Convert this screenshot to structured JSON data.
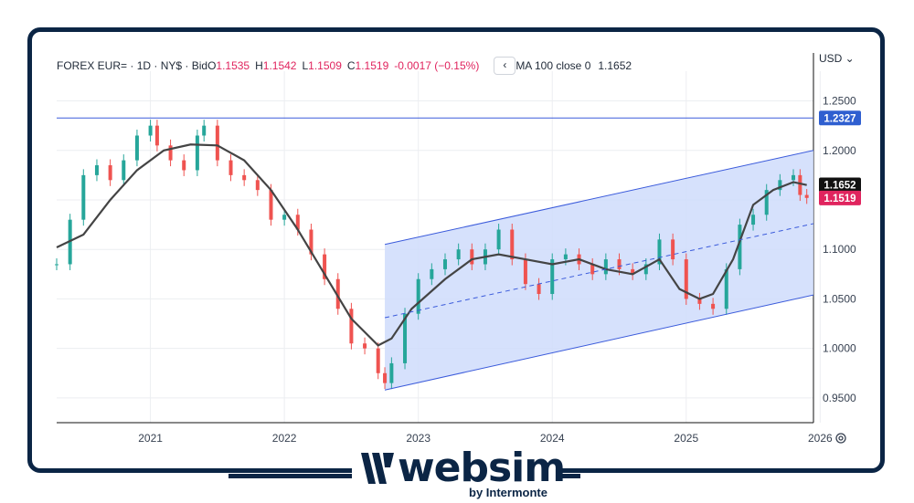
{
  "header": {
    "symbol": "FOREX EUR=",
    "interval": "1D",
    "exchange": "NY$",
    "price_type": "Bid",
    "open_label": "O",
    "open": "1.1535",
    "high_label": "H",
    "high": "1.1542",
    "low_label": "L",
    "low": "1.1509",
    "close_label": "C",
    "close": "1.1519",
    "change": "-0.0017 (−0.15%)",
    "collapse_glyph": "‹",
    "ma_label": "MA 100 close 0",
    "ma_value": "1.1652"
  },
  "currency_selector": "USD ⌄",
  "logo": {
    "name": "websim",
    "tagline": "by Intermonte"
  },
  "chart_data": {
    "type": "line",
    "title": "",
    "xlabel": "",
    "ylabel": "",
    "x_ticks": [
      "2021",
      "2022",
      "2023",
      "2024",
      "2025",
      "2026"
    ],
    "y_ticks": [
      "1.2500",
      "1.2000",
      "1.1500",
      "1.1000",
      "1.0500",
      "1.0000",
      "0.9500"
    ],
    "ylim": [
      0.925,
      1.28
    ],
    "xlim": [
      2020.3,
      2025.95
    ],
    "series": [
      {
        "type": "candlestick",
        "color_up": "#26a69a",
        "color_down": "#ef5350",
        "x": [
          2020.3,
          2020.4,
          2020.5,
          2020.6,
          2020.7,
          2020.8,
          2020.9,
          2021.0,
          2021.05,
          2021.15,
          2021.25,
          2021.35,
          2021.4,
          2021.5,
          2021.6,
          2021.7,
          2021.8,
          2021.9,
          2022.0,
          2022.1,
          2022.2,
          2022.3,
          2022.4,
          2022.5,
          2022.6,
          2022.7,
          2022.75,
          2022.8,
          2022.9,
          2023.0,
          2023.1,
          2023.2,
          2023.3,
          2023.4,
          2023.5,
          2023.6,
          2023.7,
          2023.8,
          2023.9,
          2024.0,
          2024.1,
          2024.2,
          2024.3,
          2024.4,
          2024.5,
          2024.6,
          2024.7,
          2024.8,
          2024.9,
          2025.0,
          2025.1,
          2025.2,
          2025.3,
          2025.4,
          2025.5,
          2025.6,
          2025.7,
          2025.8,
          2025.85,
          2025.9
        ],
        "close": [
          1.085,
          1.13,
          1.175,
          1.185,
          1.17,
          1.19,
          1.215,
          1.225,
          1.205,
          1.19,
          1.18,
          1.215,
          1.225,
          1.19,
          1.175,
          1.17,
          1.16,
          1.13,
          1.135,
          1.12,
          1.095,
          1.07,
          1.04,
          1.005,
          1.0,
          0.975,
          0.965,
          0.985,
          1.035,
          1.07,
          1.08,
          1.09,
          1.1,
          1.085,
          1.1,
          1.12,
          1.09,
          1.065,
          1.055,
          1.09,
          1.095,
          1.085,
          1.075,
          1.09,
          1.08,
          1.075,
          1.085,
          1.11,
          1.09,
          1.05,
          1.045,
          1.04,
          1.08,
          1.125,
          1.135,
          1.16,
          1.17,
          1.175,
          1.155,
          1.152
        ]
      },
      {
        "name": "MA 100 close 0",
        "color": "#444444",
        "x": [
          2020.3,
          2020.5,
          2020.7,
          2020.9,
          2021.1,
          2021.3,
          2021.5,
          2021.7,
          2021.9,
          2022.1,
          2022.3,
          2022.5,
          2022.7,
          2022.8,
          2022.95,
          2023.2,
          2023.4,
          2023.6,
          2023.8,
          2024.0,
          2024.2,
          2024.4,
          2024.6,
          2024.8,
          2024.95,
          2025.1,
          2025.2,
          2025.35,
          2025.5,
          2025.65,
          2025.8,
          2025.9
        ],
        "y": [
          1.102,
          1.115,
          1.15,
          1.18,
          1.2,
          1.206,
          1.205,
          1.19,
          1.16,
          1.12,
          1.075,
          1.03,
          1.003,
          1.01,
          1.04,
          1.07,
          1.09,
          1.095,
          1.09,
          1.085,
          1.09,
          1.08,
          1.075,
          1.09,
          1.06,
          1.05,
          1.055,
          1.09,
          1.145,
          1.16,
          1.168,
          1.165
        ]
      },
      {
        "name": "horizontal",
        "color": "#3b5bdb",
        "x": [
          2020.3,
          2025.95
        ],
        "y": [
          1.2327,
          1.2327
        ]
      },
      {
        "name": "channel-upper",
        "color": "#3b5bdb",
        "x": [
          2022.75,
          2025.95
        ],
        "y": [
          1.105,
          1.2
        ]
      },
      {
        "name": "channel-lower",
        "color": "#3b5bdb",
        "x": [
          2022.75,
          2025.95
        ],
        "y": [
          0.958,
          1.054
        ]
      },
      {
        "name": "channel-mid",
        "color": "#3b5bdb",
        "dashed": true,
        "x": [
          2022.75,
          2025.95
        ],
        "y": [
          1.031,
          1.126
        ]
      }
    ],
    "price_labels": [
      {
        "value": "1.2327",
        "y": 1.2327,
        "color": "#2f5fd0"
      },
      {
        "value": "1.1652",
        "y": 1.1652,
        "color": "#111111"
      },
      {
        "value": "1.1519",
        "y": 1.1519,
        "color": "#e0245e"
      }
    ],
    "grid": true
  }
}
